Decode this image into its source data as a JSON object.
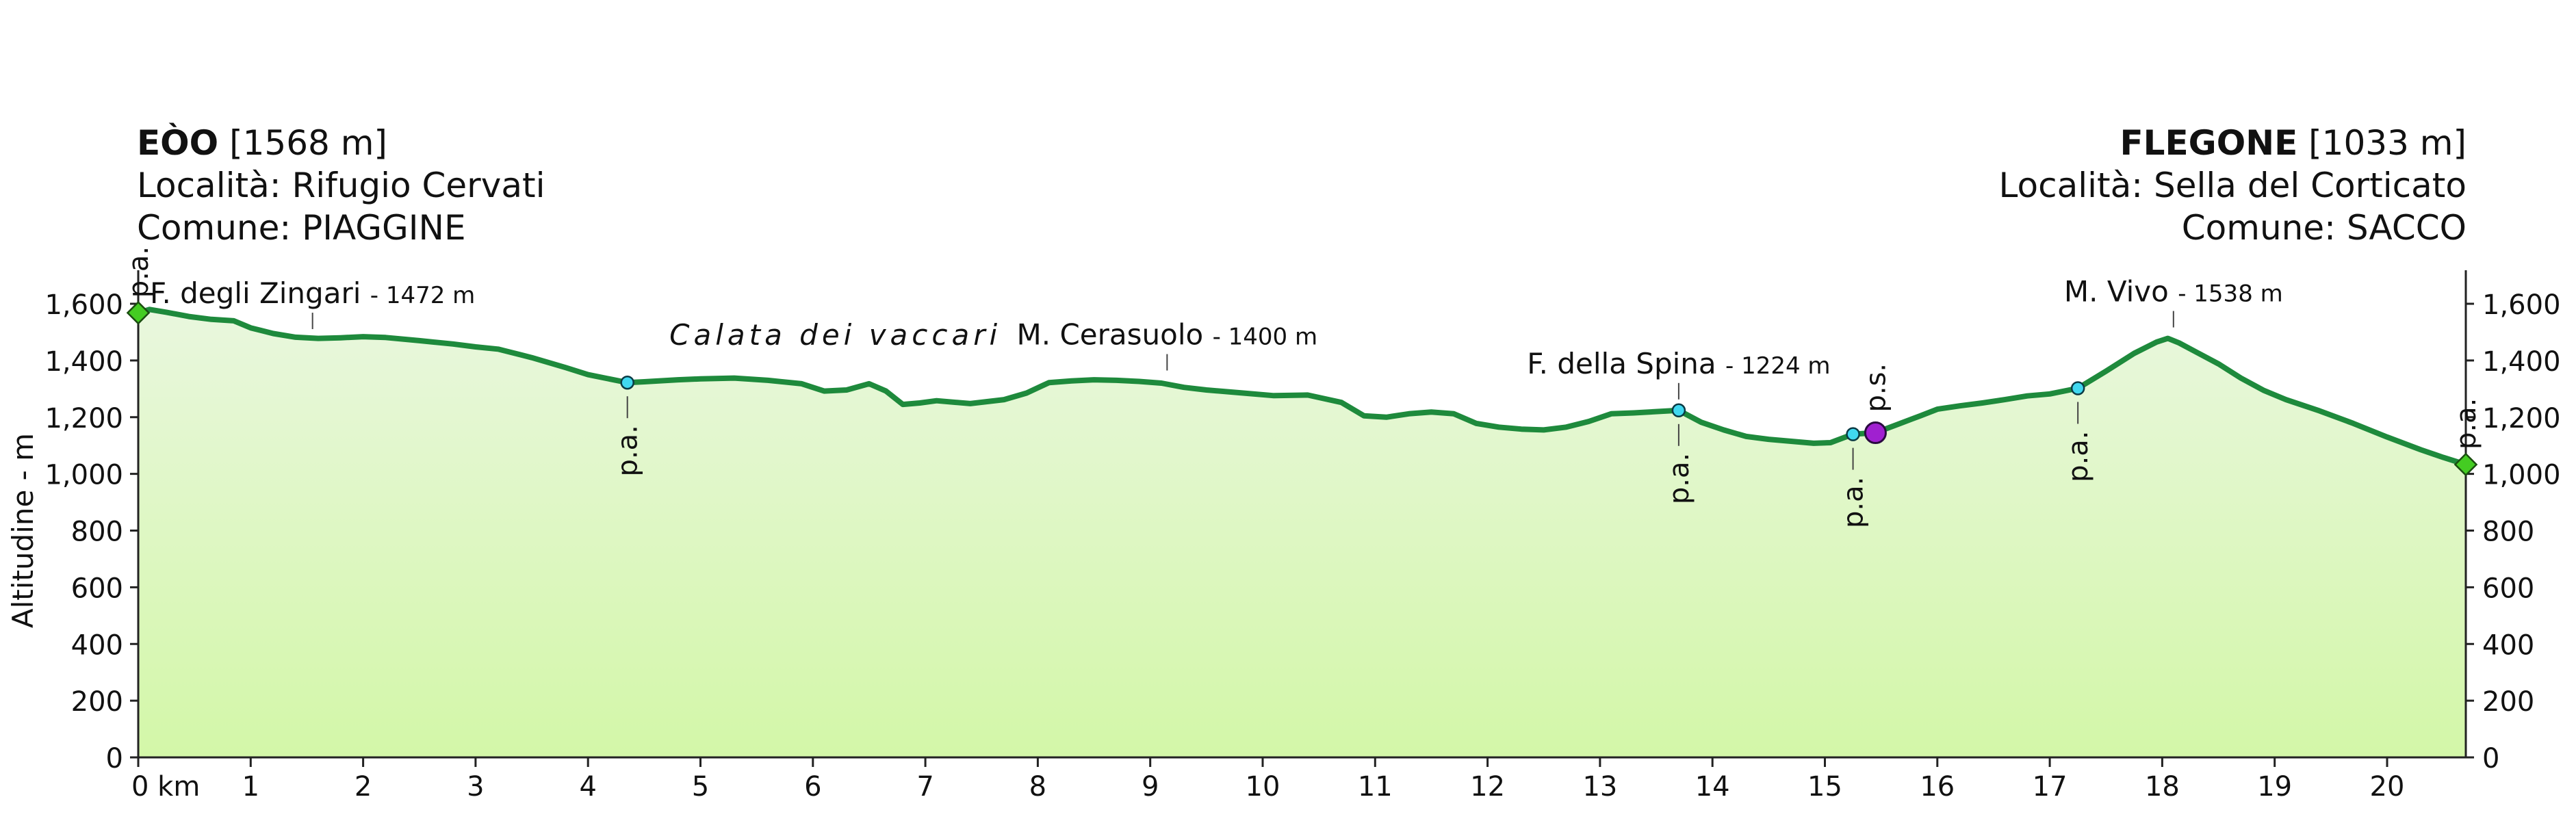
{
  "start": {
    "name": "EÒO",
    "elevation": "[1568 m]",
    "locality": "Località: Rifugio Cervati",
    "comune": "Comune: PIAGGINE"
  },
  "end": {
    "name": "FLEGONE",
    "elevation": "[1033 m]",
    "locality": "Località: Sella del Corticato",
    "comune": "Comune: SACCO"
  },
  "colors": {
    "line": "#1e8a3c",
    "fill_top": "#e9f7de",
    "fill_bottom": "#d3f7a8",
    "water_point": "#40d8f0",
    "station_point": "#a020d0",
    "endpoint": "#44cc22"
  },
  "chart_data": {
    "type": "area",
    "ylabel": "Altitudine - m",
    "x_unit_label": "0 km",
    "xlim": [
      0,
      20.7
    ],
    "ylim": [
      0,
      1600
    ],
    "x_ticks": [
      "0 km",
      "1",
      "2",
      "3",
      "4",
      "5",
      "6",
      "7",
      "8",
      "9",
      "10",
      "11",
      "12",
      "13",
      "14",
      "15",
      "16",
      "17",
      "18",
      "19",
      "20"
    ],
    "y_ticks": [
      "0",
      "200",
      "400",
      "600",
      "800",
      "1,000",
      "1,200",
      "1,400",
      "1,600"
    ],
    "profile": {
      "x": [
        0,
        0.1,
        0.25,
        0.45,
        0.65,
        0.85,
        1.0,
        1.2,
        1.4,
        1.6,
        1.8,
        2.0,
        2.2,
        2.5,
        2.8,
        3.0,
        3.2,
        3.5,
        3.8,
        4.0,
        4.35,
        4.5,
        4.8,
        5.0,
        5.3,
        5.6,
        5.9,
        6.1,
        6.3,
        6.5,
        6.65,
        6.8,
        6.95,
        7.1,
        7.4,
        7.7,
        7.9,
        8.1,
        8.3,
        8.5,
        8.7,
        8.9,
        9.1,
        9.3,
        9.5,
        9.8,
        10.1,
        10.4,
        10.7,
        10.9,
        11.1,
        11.3,
        11.5,
        11.7,
        11.9,
        12.1,
        12.3,
        12.5,
        12.7,
        12.9,
        13.1,
        13.3,
        13.7,
        13.9,
        14.1,
        14.3,
        14.5,
        14.7,
        14.9,
        15.05,
        15.25,
        15.45,
        15.65,
        15.85,
        16.0,
        16.2,
        16.4,
        16.6,
        16.8,
        17.0,
        17.25,
        17.5,
        17.75,
        17.95,
        18.05,
        18.15,
        18.3,
        18.5,
        18.7,
        18.9,
        19.1,
        19.4,
        19.7,
        20.0,
        20.3,
        20.5,
        20.7
      ],
      "y": [
        1568,
        1580,
        1570,
        1555,
        1545,
        1540,
        1515,
        1495,
        1482,
        1478,
        1480,
        1484,
        1481,
        1470,
        1458,
        1448,
        1440,
        1410,
        1375,
        1350,
        1322,
        1325,
        1332,
        1335,
        1338,
        1330,
        1318,
        1292,
        1296,
        1318,
        1292,
        1245,
        1250,
        1258,
        1248,
        1262,
        1285,
        1322,
        1328,
        1332,
        1330,
        1326,
        1320,
        1305,
        1296,
        1286,
        1276,
        1278,
        1252,
        1205,
        1200,
        1212,
        1218,
        1212,
        1178,
        1165,
        1158,
        1155,
        1165,
        1185,
        1212,
        1215,
        1224,
        1182,
        1155,
        1132,
        1122,
        1115,
        1108,
        1110,
        1140,
        1145,
        1175,
        1205,
        1228,
        1240,
        1250,
        1262,
        1275,
        1282,
        1302,
        1362,
        1425,
        1465,
        1478,
        1462,
        1430,
        1388,
        1338,
        1295,
        1262,
        1222,
        1178,
        1130,
        1085,
        1058,
        1033
      ]
    },
    "annotations": [
      {
        "label": "F. degli Zingari",
        "elev_label": "- 1472 m",
        "x": 1.55,
        "y": 1472
      },
      {
        "label": "M. Cerasuolo",
        "elev_label": "- 1400 m",
        "x": 9.15,
        "y": 1326
      },
      {
        "label": "F. della Spina",
        "elev_label": "- 1224 m",
        "x": 13.7,
        "y": 1224
      },
      {
        "label": "M. Vivo",
        "elev_label": "- 1538 m",
        "x": 18.1,
        "y": 1478
      }
    ],
    "region_labels": [
      {
        "label": "Calata dei vaccari",
        "x": 6.2,
        "y": 1455
      }
    ],
    "points": [
      {
        "label": "p.a.",
        "x": 0,
        "y": 1568,
        "kind": "endpoint",
        "label_pos": "above"
      },
      {
        "label": "p.a.",
        "x": 4.35,
        "y": 1322,
        "kind": "water",
        "label_pos": "below"
      },
      {
        "label": "p.a.",
        "x": 13.7,
        "y": 1224,
        "kind": "water",
        "label_pos": "below"
      },
      {
        "label": "p.a.",
        "x": 15.25,
        "y": 1140,
        "kind": "water",
        "label_pos": "below"
      },
      {
        "label": "p.s.",
        "x": 15.45,
        "y": 1145,
        "kind": "station",
        "label_pos": "above"
      },
      {
        "label": "p.a.",
        "x": 17.25,
        "y": 1302,
        "kind": "water",
        "label_pos": "below"
      },
      {
        "label": "p.a.",
        "x": 20.7,
        "y": 1033,
        "kind": "endpoint",
        "label_pos": "above"
      }
    ]
  }
}
